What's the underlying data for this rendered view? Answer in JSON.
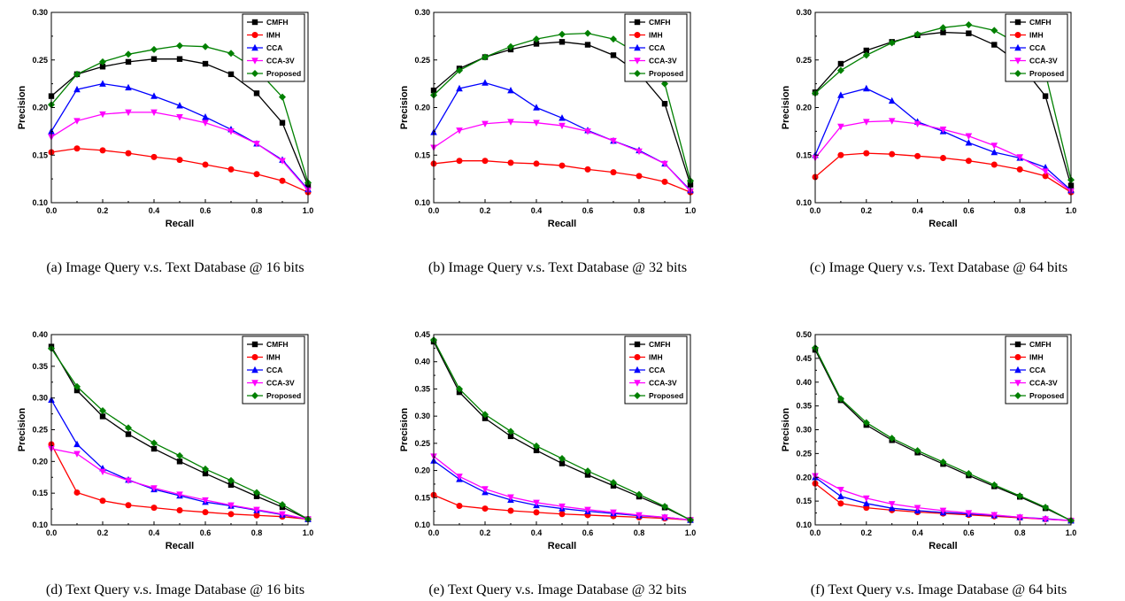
{
  "figure": {
    "legend_order": [
      "CMFH",
      "IMH",
      "CCA",
      "CCA-3V",
      "Proposed"
    ],
    "series_styles": {
      "CMFH": {
        "color": "#000000",
        "marker": "square"
      },
      "IMH": {
        "color": "#ff0000",
        "marker": "circle"
      },
      "CCA": {
        "color": "#0000ff",
        "marker": "triangle-up"
      },
      "CCA-3V": {
        "color": "#ff00ff",
        "marker": "triangle-down"
      },
      "Proposed": {
        "color": "#008000",
        "marker": "diamond"
      }
    }
  },
  "chart_data": [
    {
      "type": "line",
      "caption": "(a) Image Query v.s. Text Database @ 16 bits",
      "xlabel": "Recall",
      "ylabel": "Precision",
      "xlim": [
        0,
        1
      ],
      "ylim": [
        0.1,
        0.3
      ],
      "xticks": [
        "0.0",
        "0.2",
        "0.4",
        "0.6",
        "0.8",
        "1.0"
      ],
      "yticks": [
        "0.10",
        "0.15",
        "0.20",
        "0.25",
        "0.30"
      ],
      "legend_position": "top-right",
      "x": [
        0,
        0.1,
        0.2,
        0.3,
        0.4,
        0.5,
        0.6,
        0.7,
        0.8,
        0.9,
        1.0
      ],
      "series": [
        {
          "name": "CMFH",
          "values": [
            0.212,
            0.235,
            0.243,
            0.248,
            0.251,
            0.251,
            0.246,
            0.235,
            0.215,
            0.184,
            0.118
          ]
        },
        {
          "name": "IMH",
          "values": [
            0.153,
            0.157,
            0.155,
            0.152,
            0.148,
            0.145,
            0.14,
            0.135,
            0.13,
            0.123,
            0.111
          ]
        },
        {
          "name": "CCA",
          "values": [
            0.175,
            0.219,
            0.225,
            0.221,
            0.212,
            0.202,
            0.19,
            0.177,
            0.162,
            0.145,
            0.114
          ]
        },
        {
          "name": "CCA-3V",
          "values": [
            0.169,
            0.186,
            0.193,
            0.195,
            0.195,
            0.19,
            0.184,
            0.175,
            0.162,
            0.144,
            0.113
          ]
        },
        {
          "name": "Proposed",
          "values": [
            0.203,
            0.235,
            0.248,
            0.256,
            0.261,
            0.265,
            0.264,
            0.257,
            0.24,
            0.211,
            0.121
          ]
        }
      ]
    },
    {
      "type": "line",
      "caption": "(b) Image Query v.s. Text Database @ 32 bits",
      "xlabel": "Recall",
      "ylabel": "Precision",
      "xlim": [
        0,
        1
      ],
      "ylim": [
        0.1,
        0.3
      ],
      "xticks": [
        "0.0",
        "0.2",
        "0.4",
        "0.6",
        "0.8",
        "1.0"
      ],
      "yticks": [
        "0.10",
        "0.15",
        "0.20",
        "0.25",
        "0.30"
      ],
      "legend_position": "top-right",
      "x": [
        0,
        0.1,
        0.2,
        0.3,
        0.4,
        0.5,
        0.6,
        0.7,
        0.8,
        0.9,
        1.0
      ],
      "series": [
        {
          "name": "CMFH",
          "values": [
            0.218,
            0.241,
            0.253,
            0.261,
            0.267,
            0.269,
            0.266,
            0.255,
            0.236,
            0.204,
            0.119
          ]
        },
        {
          "name": "IMH",
          "values": [
            0.141,
            0.144,
            0.144,
            0.142,
            0.141,
            0.139,
            0.135,
            0.132,
            0.128,
            0.122,
            0.111
          ]
        },
        {
          "name": "CCA",
          "values": [
            0.174,
            0.22,
            0.226,
            0.218,
            0.2,
            0.189,
            0.176,
            0.165,
            0.155,
            0.141,
            0.113
          ]
        },
        {
          "name": "CCA-3V",
          "values": [
            0.158,
            0.176,
            0.183,
            0.185,
            0.184,
            0.181,
            0.175,
            0.165,
            0.154,
            0.141,
            0.112
          ]
        },
        {
          "name": "Proposed",
          "values": [
            0.213,
            0.239,
            0.253,
            0.264,
            0.272,
            0.277,
            0.278,
            0.272,
            0.256,
            0.225,
            0.123
          ]
        }
      ]
    },
    {
      "type": "line",
      "caption": "(c) Image Query v.s. Text Database @ 64 bits",
      "xlabel": "Recall",
      "ylabel": "Precision",
      "xlim": [
        0,
        1
      ],
      "ylim": [
        0.1,
        0.3
      ],
      "xticks": [
        "0.0",
        "0.2",
        "0.4",
        "0.6",
        "0.8",
        "1.0"
      ],
      "yticks": [
        "0.10",
        "0.15",
        "0.20",
        "0.25",
        "0.30"
      ],
      "legend_position": "top-right",
      "x": [
        0,
        0.1,
        0.2,
        0.3,
        0.4,
        0.5,
        0.6,
        0.7,
        0.8,
        0.9,
        1.0
      ],
      "series": [
        {
          "name": "CMFH",
          "values": [
            0.216,
            0.246,
            0.26,
            0.269,
            0.276,
            0.279,
            0.278,
            0.266,
            0.246,
            0.212,
            0.118
          ]
        },
        {
          "name": "IMH",
          "values": [
            0.127,
            0.15,
            0.152,
            0.151,
            0.149,
            0.147,
            0.144,
            0.14,
            0.135,
            0.128,
            0.111
          ]
        },
        {
          "name": "CCA",
          "values": [
            0.15,
            0.213,
            0.22,
            0.207,
            0.185,
            0.175,
            0.163,
            0.153,
            0.147,
            0.137,
            0.113
          ]
        },
        {
          "name": "CCA-3V",
          "values": [
            0.147,
            0.18,
            0.185,
            0.186,
            0.183,
            0.177,
            0.17,
            0.16,
            0.148,
            0.133,
            0.112
          ]
        },
        {
          "name": "Proposed",
          "values": [
            0.215,
            0.239,
            0.255,
            0.268,
            0.277,
            0.284,
            0.287,
            0.281,
            0.266,
            0.236,
            0.124
          ]
        }
      ]
    },
    {
      "type": "line",
      "caption": "(d) Text Query v.s. Image Database @ 16 bits",
      "xlabel": "Recall",
      "ylabel": "Precision",
      "xlim": [
        0,
        1
      ],
      "ylim": [
        0.1,
        0.4
      ],
      "xticks": [
        "0.0",
        "0.2",
        "0.4",
        "0.6",
        "0.8",
        "1.0"
      ],
      "yticks": [
        "0.10",
        "0.15",
        "0.20",
        "0.25",
        "0.30",
        "0.35",
        "0.40"
      ],
      "legend_position": "top-right",
      "x": [
        0,
        0.1,
        0.2,
        0.3,
        0.4,
        0.5,
        0.6,
        0.7,
        0.8,
        0.9,
        1.0
      ],
      "series": [
        {
          "name": "CMFH",
          "values": [
            0.381,
            0.312,
            0.271,
            0.243,
            0.22,
            0.2,
            0.181,
            0.163,
            0.145,
            0.128,
            0.109
          ]
        },
        {
          "name": "IMH",
          "values": [
            0.227,
            0.151,
            0.138,
            0.131,
            0.127,
            0.123,
            0.12,
            0.117,
            0.115,
            0.113,
            0.109
          ]
        },
        {
          "name": "CCA",
          "values": [
            0.297,
            0.227,
            0.189,
            0.171,
            0.156,
            0.146,
            0.136,
            0.13,
            0.123,
            0.116,
            0.109
          ]
        },
        {
          "name": "CCA-3V",
          "values": [
            0.22,
            0.212,
            0.184,
            0.17,
            0.158,
            0.148,
            0.139,
            0.131,
            0.124,
            0.117,
            0.109
          ]
        },
        {
          "name": "Proposed",
          "values": [
            0.378,
            0.318,
            0.28,
            0.253,
            0.229,
            0.209,
            0.188,
            0.17,
            0.151,
            0.132,
            0.109
          ]
        }
      ]
    },
    {
      "type": "line",
      "caption": "(e) Text Query v.s. Image Database @ 32 bits",
      "xlabel": "Recall",
      "ylabel": "Precision",
      "xlim": [
        0,
        1
      ],
      "ylim": [
        0.1,
        0.45
      ],
      "xticks": [
        "0.0",
        "0.2",
        "0.4",
        "0.6",
        "0.8",
        "1.0"
      ],
      "yticks": [
        "0.10",
        "0.15",
        "0.20",
        "0.25",
        "0.30",
        "0.35",
        "0.40",
        "0.45"
      ],
      "legend_position": "top-right",
      "x": [
        0,
        0.1,
        0.2,
        0.3,
        0.4,
        0.5,
        0.6,
        0.7,
        0.8,
        0.9,
        1.0
      ],
      "series": [
        {
          "name": "CMFH",
          "values": [
            0.437,
            0.344,
            0.296,
            0.263,
            0.237,
            0.213,
            0.192,
            0.172,
            0.152,
            0.132,
            0.109
          ]
        },
        {
          "name": "IMH",
          "values": [
            0.155,
            0.135,
            0.13,
            0.126,
            0.123,
            0.12,
            0.118,
            0.116,
            0.114,
            0.112,
            0.109
          ]
        },
        {
          "name": "CCA",
          "values": [
            0.218,
            0.184,
            0.16,
            0.146,
            0.136,
            0.13,
            0.125,
            0.121,
            0.117,
            0.114,
            0.109
          ]
        },
        {
          "name": "CCA-3V",
          "values": [
            0.226,
            0.189,
            0.166,
            0.151,
            0.141,
            0.134,
            0.128,
            0.123,
            0.118,
            0.114,
            0.109
          ]
        },
        {
          "name": "Proposed",
          "values": [
            0.44,
            0.35,
            0.303,
            0.272,
            0.245,
            0.222,
            0.199,
            0.178,
            0.156,
            0.134,
            0.109
          ]
        }
      ]
    },
    {
      "type": "line",
      "caption": "(f) Text Query v.s. Image Database @ 64 bits",
      "xlabel": "Recall",
      "ylabel": "Precision",
      "xlim": [
        0,
        1
      ],
      "ylim": [
        0.1,
        0.5
      ],
      "xticks": [
        "0.0",
        "0.2",
        "0.4",
        "0.6",
        "0.8",
        "1.0"
      ],
      "yticks": [
        "0.10",
        "0.15",
        "0.20",
        "0.25",
        "0.30",
        "0.35",
        "0.40",
        "0.45",
        "0.50"
      ],
      "legend_position": "top-right",
      "x": [
        0,
        0.1,
        0.2,
        0.3,
        0.4,
        0.5,
        0.6,
        0.7,
        0.8,
        0.9,
        1.0
      ],
      "series": [
        {
          "name": "CMFH",
          "values": [
            0.468,
            0.362,
            0.31,
            0.278,
            0.252,
            0.228,
            0.204,
            0.181,
            0.159,
            0.135,
            0.109
          ]
        },
        {
          "name": "IMH",
          "values": [
            0.187,
            0.145,
            0.136,
            0.131,
            0.127,
            0.124,
            0.121,
            0.118,
            0.115,
            0.112,
            0.109
          ]
        },
        {
          "name": "CCA",
          "values": [
            0.2,
            0.16,
            0.145,
            0.135,
            0.13,
            0.126,
            0.123,
            0.12,
            0.116,
            0.113,
            0.109
          ]
        },
        {
          "name": "CCA-3V",
          "values": [
            0.203,
            0.174,
            0.156,
            0.144,
            0.136,
            0.13,
            0.125,
            0.121,
            0.116,
            0.112,
            0.109
          ]
        },
        {
          "name": "Proposed",
          "values": [
            0.472,
            0.365,
            0.315,
            0.282,
            0.256,
            0.232,
            0.208,
            0.184,
            0.161,
            0.137,
            0.109
          ]
        }
      ]
    }
  ]
}
